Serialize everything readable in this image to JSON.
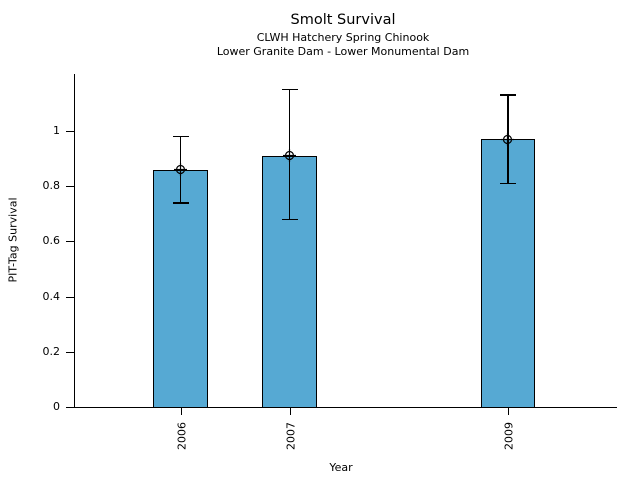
{
  "chart_data": {
    "type": "bar",
    "title": "Smolt Survival",
    "subtitle1": "CLWH Hatchery Spring Chinook",
    "subtitle2": "Lower Granite Dam - Lower Monumental Dam",
    "xlabel": "Year",
    "ylabel": "PIT-Tag Survival",
    "categories": [
      "2006",
      "2007",
      "2009"
    ],
    "x": [
      2006,
      2007,
      2009
    ],
    "values": [
      0.86,
      0.91,
      0.97
    ],
    "error_low": [
      0.74,
      0.68,
      0.81
    ],
    "error_high": [
      0.98,
      1.15,
      1.13
    ],
    "yticks": [
      0,
      0.2,
      0.4,
      0.6,
      0.8,
      1
    ],
    "ytick_labels": [
      "0",
      "0.2",
      "0.4",
      "0.6",
      "0.8",
      "1"
    ],
    "ylim": [
      0,
      1.207
    ],
    "xlim": [
      2004.95,
      2010.0
    ],
    "bar_width_years": 0.5,
    "bar_color": "#56A9D3",
    "bar_edge_color": "#000000",
    "axis_color": "#000000",
    "marker": "circle-plus",
    "grid": false,
    "legend": null
  }
}
